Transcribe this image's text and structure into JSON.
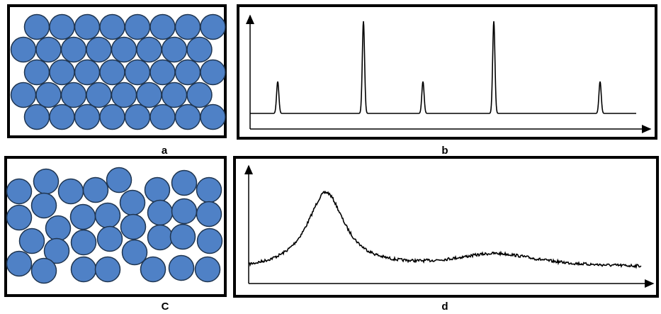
{
  "panels": [
    {
      "label": "a"
    },
    {
      "label": "b"
    },
    {
      "label": "C"
    },
    {
      "label": "d"
    }
  ]
}
